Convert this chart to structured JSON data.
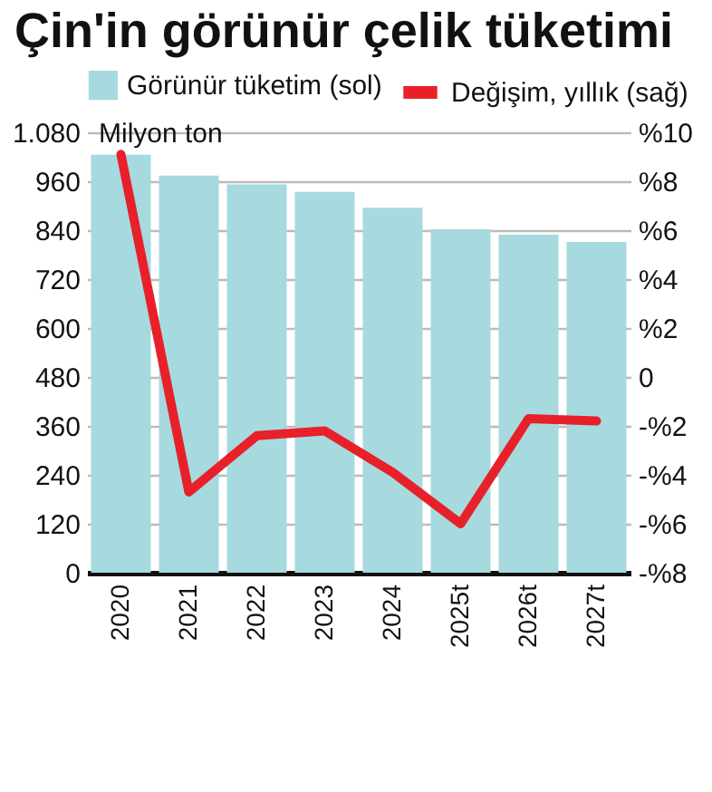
{
  "chart_data": {
    "type": "bar",
    "title": "Çin'in görünür çelik tüketimi",
    "ylabel": "Milyon ton",
    "categories": [
      "2020",
      "2021",
      "2022",
      "2023",
      "2024",
      "2025t",
      "2026t",
      "2027t"
    ],
    "series": [
      {
        "name": "Görünür tüketim (sol)",
        "color": "#a6dadf",
        "values": [
          1025,
          974,
          952,
          934,
          895,
          842,
          829,
          811
        ]
      },
      {
        "name": "Değişim, yıllık (sağ)",
        "type": "line",
        "axis": "y2",
        "color": "#e8202a",
        "values": [
          9.1,
          -4.7,
          -2.4,
          -2.2,
          -3.9,
          -6.0,
          -1.7,
          -1.8
        ]
      }
    ],
    "ylim": [
      0,
      1080
    ],
    "yticks": [
      0,
      120,
      240,
      360,
      480,
      600,
      720,
      840,
      960,
      {
        "value": 1080,
        "label": "1.080"
      }
    ],
    "y2lim": [
      -8,
      10
    ],
    "y2ticks": [
      {
        "value": -8,
        "label": "-%8"
      },
      {
        "value": -6,
        "label": "-%6"
      },
      {
        "value": -4,
        "label": "-%4"
      },
      {
        "value": -2,
        "label": "-%2"
      },
      0,
      {
        "value": 2,
        "label": "%2"
      },
      {
        "value": 4,
        "label": "%4"
      },
      {
        "value": 6,
        "label": "%6"
      },
      {
        "value": 8,
        "label": "%8"
      },
      {
        "value": 10,
        "label": "%10"
      }
    ],
    "grid": "y",
    "legend": "top",
    "line_style": "solid",
    "marker": "none"
  }
}
